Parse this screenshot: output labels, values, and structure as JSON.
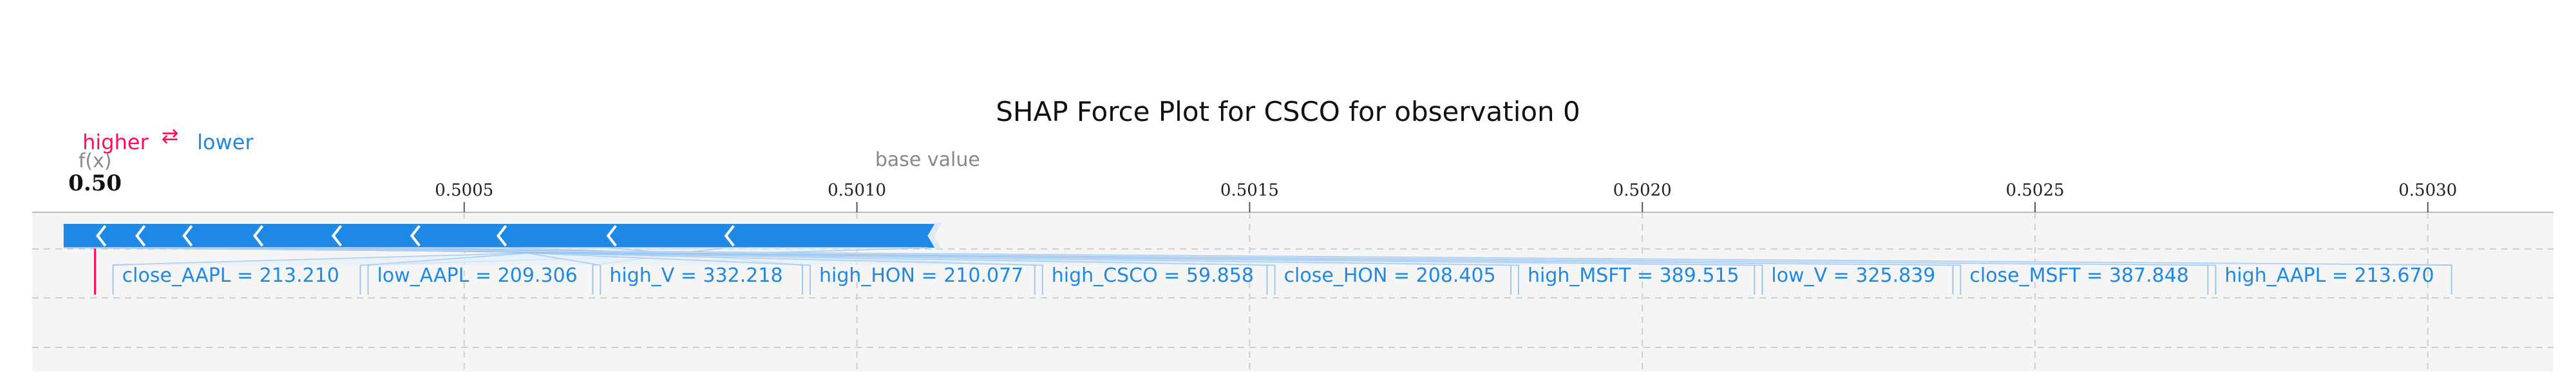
{
  "chart_data": {
    "type": "force",
    "title": "SHAP Force Plot for CSCO for observation 0",
    "legend": {
      "higher": "higher",
      "arrows": "⇄",
      "lower": "lower",
      "higher_color": "#ff0d57",
      "lower_color": "#1e88e5"
    },
    "fx_label": "f(x)",
    "fx_value_partial": "0.50",
    "fx_value": 0.50003,
    "base_value_label": "base value",
    "base_value": 0.50109,
    "xlim": [
      0.49995,
      0.50316
    ],
    "ticks": [
      0.5005,
      0.501,
      0.5015,
      0.502,
      0.5025,
      0.503
    ],
    "tick_labels": [
      "0.5005",
      "0.5010",
      "0.5015",
      "0.5020",
      "0.5025",
      "0.5030"
    ],
    "features": [
      {
        "label": "close_AAPL = 213.210",
        "width": 0.00026
      },
      {
        "label": "low_AAPL = 209.306",
        "width": 0.00015
      },
      {
        "label": "high_V = 332.218",
        "width": 0.00014
      },
      {
        "label": "high_HON = 210.077",
        "width": 0.00011
      },
      {
        "label": "high_CSCO = 59.858",
        "width": 0.0001
      },
      {
        "label": "close_HON = 208.405",
        "width": 0.0001
      },
      {
        "label": "high_MSFT = 389.515",
        "width": 9e-05
      },
      {
        "label": "low_V = 325.839",
        "width": 6e-05
      },
      {
        "label": "close_MSFT = 387.848",
        "width": 5e-05
      },
      {
        "label": "high_AAPL = 213.670",
        "width": 4e-05
      }
    ],
    "colors": {
      "negative": "#1e88e5",
      "positive": "#ff0d57",
      "band": "#f5f5f5",
      "grid": "#cfcfcf"
    }
  }
}
